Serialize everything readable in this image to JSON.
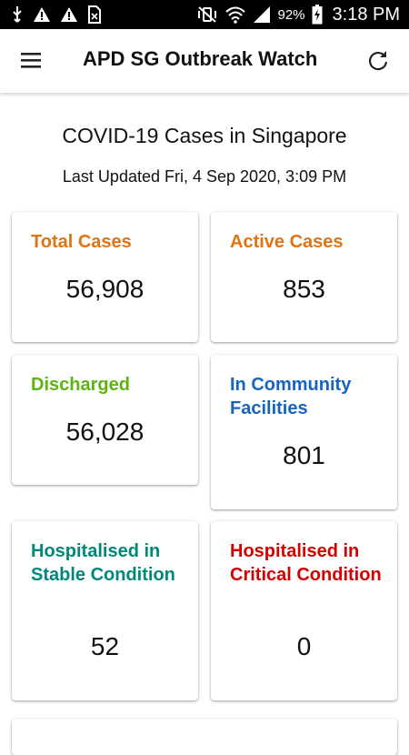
{
  "status_bar": {
    "battery": "92%",
    "time": "3:18 PM",
    "icons": [
      "usb-icon",
      "warning-icon",
      "warning-icon",
      "sim-card-icon",
      "mute-vibrate-icon",
      "wifi-icon",
      "cell-signal-icon",
      "battery-charging-icon"
    ]
  },
  "app_bar": {
    "title": "APD SG Outbreak Watch",
    "menu_icon": "hamburger-menu-icon",
    "refresh_icon": "refresh-icon"
  },
  "heading": "COVID-19 Cases in Singapore",
  "last_updated": "Last Updated Fri, 4 Sep 2020, 3:09 PM",
  "cards": {
    "total": {
      "label": "Total Cases",
      "value": "56,908",
      "color": "#E07414"
    },
    "active": {
      "label": "Active Cases",
      "value": "853",
      "color": "#E07414"
    },
    "discharged": {
      "label": "Discharged",
      "value": "56,028",
      "color": "#5DB30F"
    },
    "community": {
      "label": "In Community Facilities",
      "value": "801",
      "color": "#1565C0"
    },
    "stable": {
      "label": "Hospitalised in Stable Condition",
      "value": "52",
      "color": "#00897B"
    },
    "critical": {
      "label": "Hospitalised in Critical Condition",
      "value": "0",
      "color": "#D50000"
    }
  }
}
